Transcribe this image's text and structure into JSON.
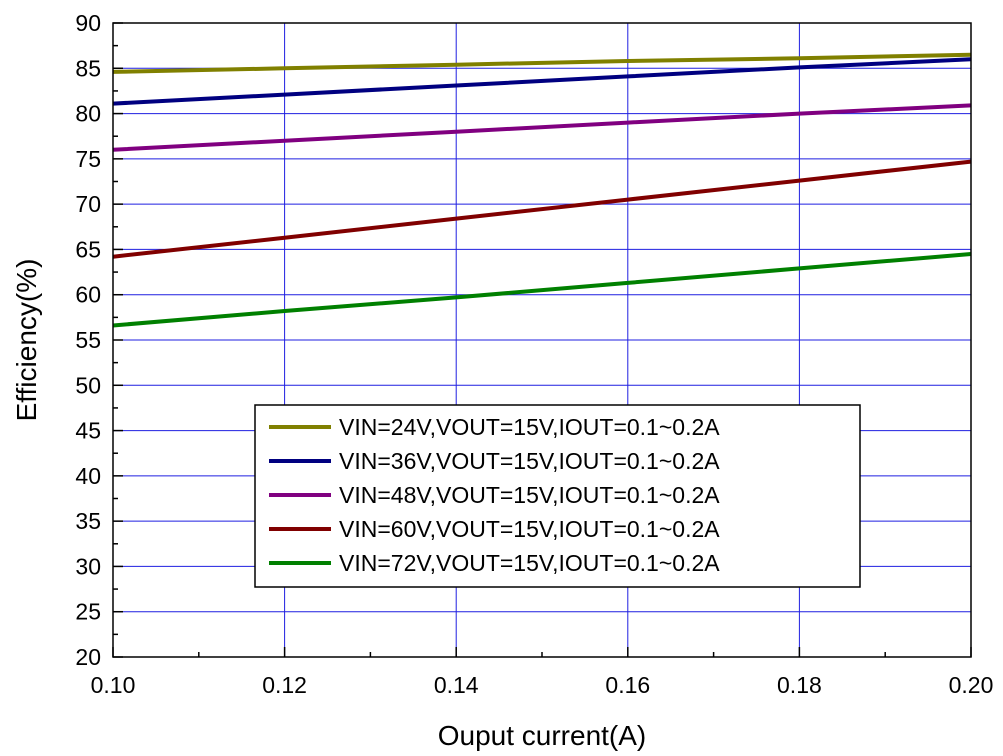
{
  "chart_data": {
    "type": "line",
    "title": "",
    "xlabel": "Ouput current(A)",
    "ylabel": "Efficiency(%)",
    "xlim": [
      0.1,
      0.2
    ],
    "ylim": [
      20,
      90
    ],
    "x_ticks": [
      "0.10",
      "0.12",
      "0.14",
      "0.16",
      "0.18",
      "0.20"
    ],
    "y_ticks": [
      "20",
      "25",
      "30",
      "35",
      "40",
      "45",
      "50",
      "55",
      "60",
      "65",
      "70",
      "75",
      "80",
      "85",
      "90"
    ],
    "grid": true,
    "grid_color": "#1f1fe0",
    "legend_position": "center-bottom",
    "series": [
      {
        "name": "VIN=24V,VOUT=15V,IOUT=0.1~0.2A",
        "color": "#808000",
        "x": [
          0.1,
          0.12,
          0.14,
          0.16,
          0.18,
          0.2
        ],
        "y": [
          84.6,
          85.0,
          85.4,
          85.8,
          86.1,
          86.5
        ]
      },
      {
        "name": "VIN=36V,VOUT=15V,IOUT=0.1~0.2A",
        "color": "#000080",
        "x": [
          0.1,
          0.12,
          0.14,
          0.16,
          0.18,
          0.2
        ],
        "y": [
          81.1,
          82.1,
          83.1,
          84.1,
          85.1,
          86.0
        ]
      },
      {
        "name": "VIN=48V,VOUT=15V,IOUT=0.1~0.2A",
        "color": "#800080",
        "x": [
          0.1,
          0.12,
          0.14,
          0.16,
          0.18,
          0.2
        ],
        "y": [
          76.0,
          77.0,
          78.0,
          79.0,
          80.0,
          80.9
        ]
      },
      {
        "name": "VIN=60V,VOUT=15V,IOUT=0.1~0.2A",
        "color": "#800000",
        "x": [
          0.1,
          0.12,
          0.14,
          0.16,
          0.18,
          0.2
        ],
        "y": [
          64.2,
          66.3,
          68.4,
          70.5,
          72.6,
          74.7
        ]
      },
      {
        "name": "VIN=72V,VOUT=15V,IOUT=0.1~0.2A",
        "color": "#008000",
        "x": [
          0.1,
          0.12,
          0.14,
          0.16,
          0.18,
          0.2
        ],
        "y": [
          56.6,
          58.2,
          59.7,
          61.3,
          62.9,
          64.5
        ]
      }
    ]
  }
}
